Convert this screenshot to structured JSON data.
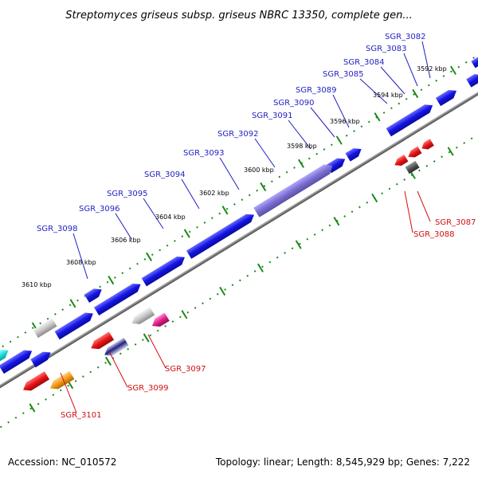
{
  "title": "Streptomyces griseus subsp. griseus NBRC 13350, complete gen...",
  "footer": {
    "accession": "Accession: NC_010572",
    "summary": "Topology: linear; Length: 8,545,929 bp; Genes: 7,222"
  },
  "colors": {
    "plus_strand": "#1414e6",
    "minus_strand": "#e61414",
    "selected_gene": "#7b6fd0",
    "axis": "#808080",
    "tick_dots": "#1a8a1a",
    "plus_label": "#1f1fc0",
    "minus_label": "#d01010"
  },
  "tick_labels": [
    "3592 kbp",
    "3594 kbp",
    "3596 kbp",
    "3598 kbp",
    "3600 kbp",
    "3602 kbp",
    "3604 kbp",
    "3606 kbp",
    "3608 kbp",
    "3610 kbp"
  ],
  "genes_plus": [
    "SGR_3082",
    "SGR_3083",
    "SGR_3084",
    "SGR_3085",
    "SGR_3089",
    "SGR_3090",
    "SGR_3091",
    "SGR_3092",
    "SGR_3093",
    "SGR_3094",
    "SGR_3095",
    "SGR_3096",
    "SGR_3098"
  ],
  "genes_minus": [
    "SGR_3087",
    "SGR_3088",
    "SGR_3097",
    "SGR_3099",
    "SGR_3101"
  ],
  "feature_colors": [
    "blue",
    "red",
    "cyan",
    "orange",
    "grey",
    "magenta",
    "navy",
    "purple"
  ]
}
